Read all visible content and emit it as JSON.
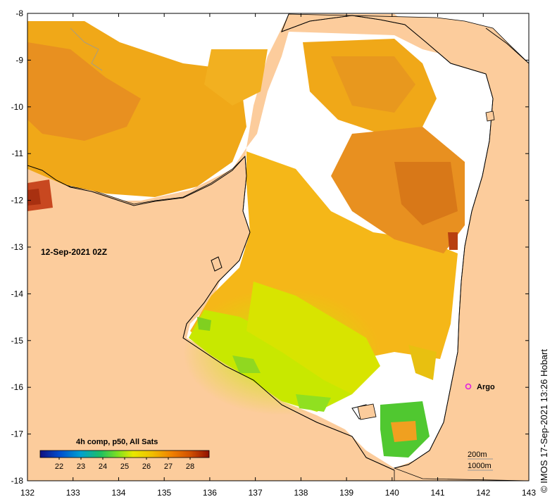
{
  "map": {
    "timestamp": "12-Sep-2021 02Z",
    "x_ticks": [
      "132",
      "133",
      "134",
      "135",
      "136",
      "137",
      "138",
      "139",
      "140",
      "141",
      "142",
      "143"
    ],
    "y_ticks": [
      "-8",
      "-9",
      "-10",
      "-11",
      "-12",
      "-13",
      "-14",
      "-15",
      "-16",
      "-17",
      "-18"
    ],
    "x_range": [
      132,
      143
    ],
    "y_range": [
      -8,
      -18
    ],
    "argo": {
      "label": "Argo",
      "lon": 141.7,
      "lat": -16.0,
      "color": "#e020e0"
    },
    "legend": {
      "title": "4h comp, p50, All Sats",
      "labels": [
        "22",
        "23",
        "24",
        "25",
        "26",
        "27",
        "28"
      ],
      "colors": [
        "#101080",
        "#0050d0",
        "#00a0d0",
        "#20c060",
        "#80e020",
        "#e8e800",
        "#f0c000",
        "#f08000",
        "#d05000",
        "#901000"
      ]
    },
    "depth_labels": [
      "200m",
      "1000m"
    ],
    "credit": "© IMOS 17-Sep-2021 13:26 Hobart",
    "colors": {
      "land": "#fccc9c",
      "coast": "#000000",
      "sst_base": "#f0a818"
    }
  }
}
